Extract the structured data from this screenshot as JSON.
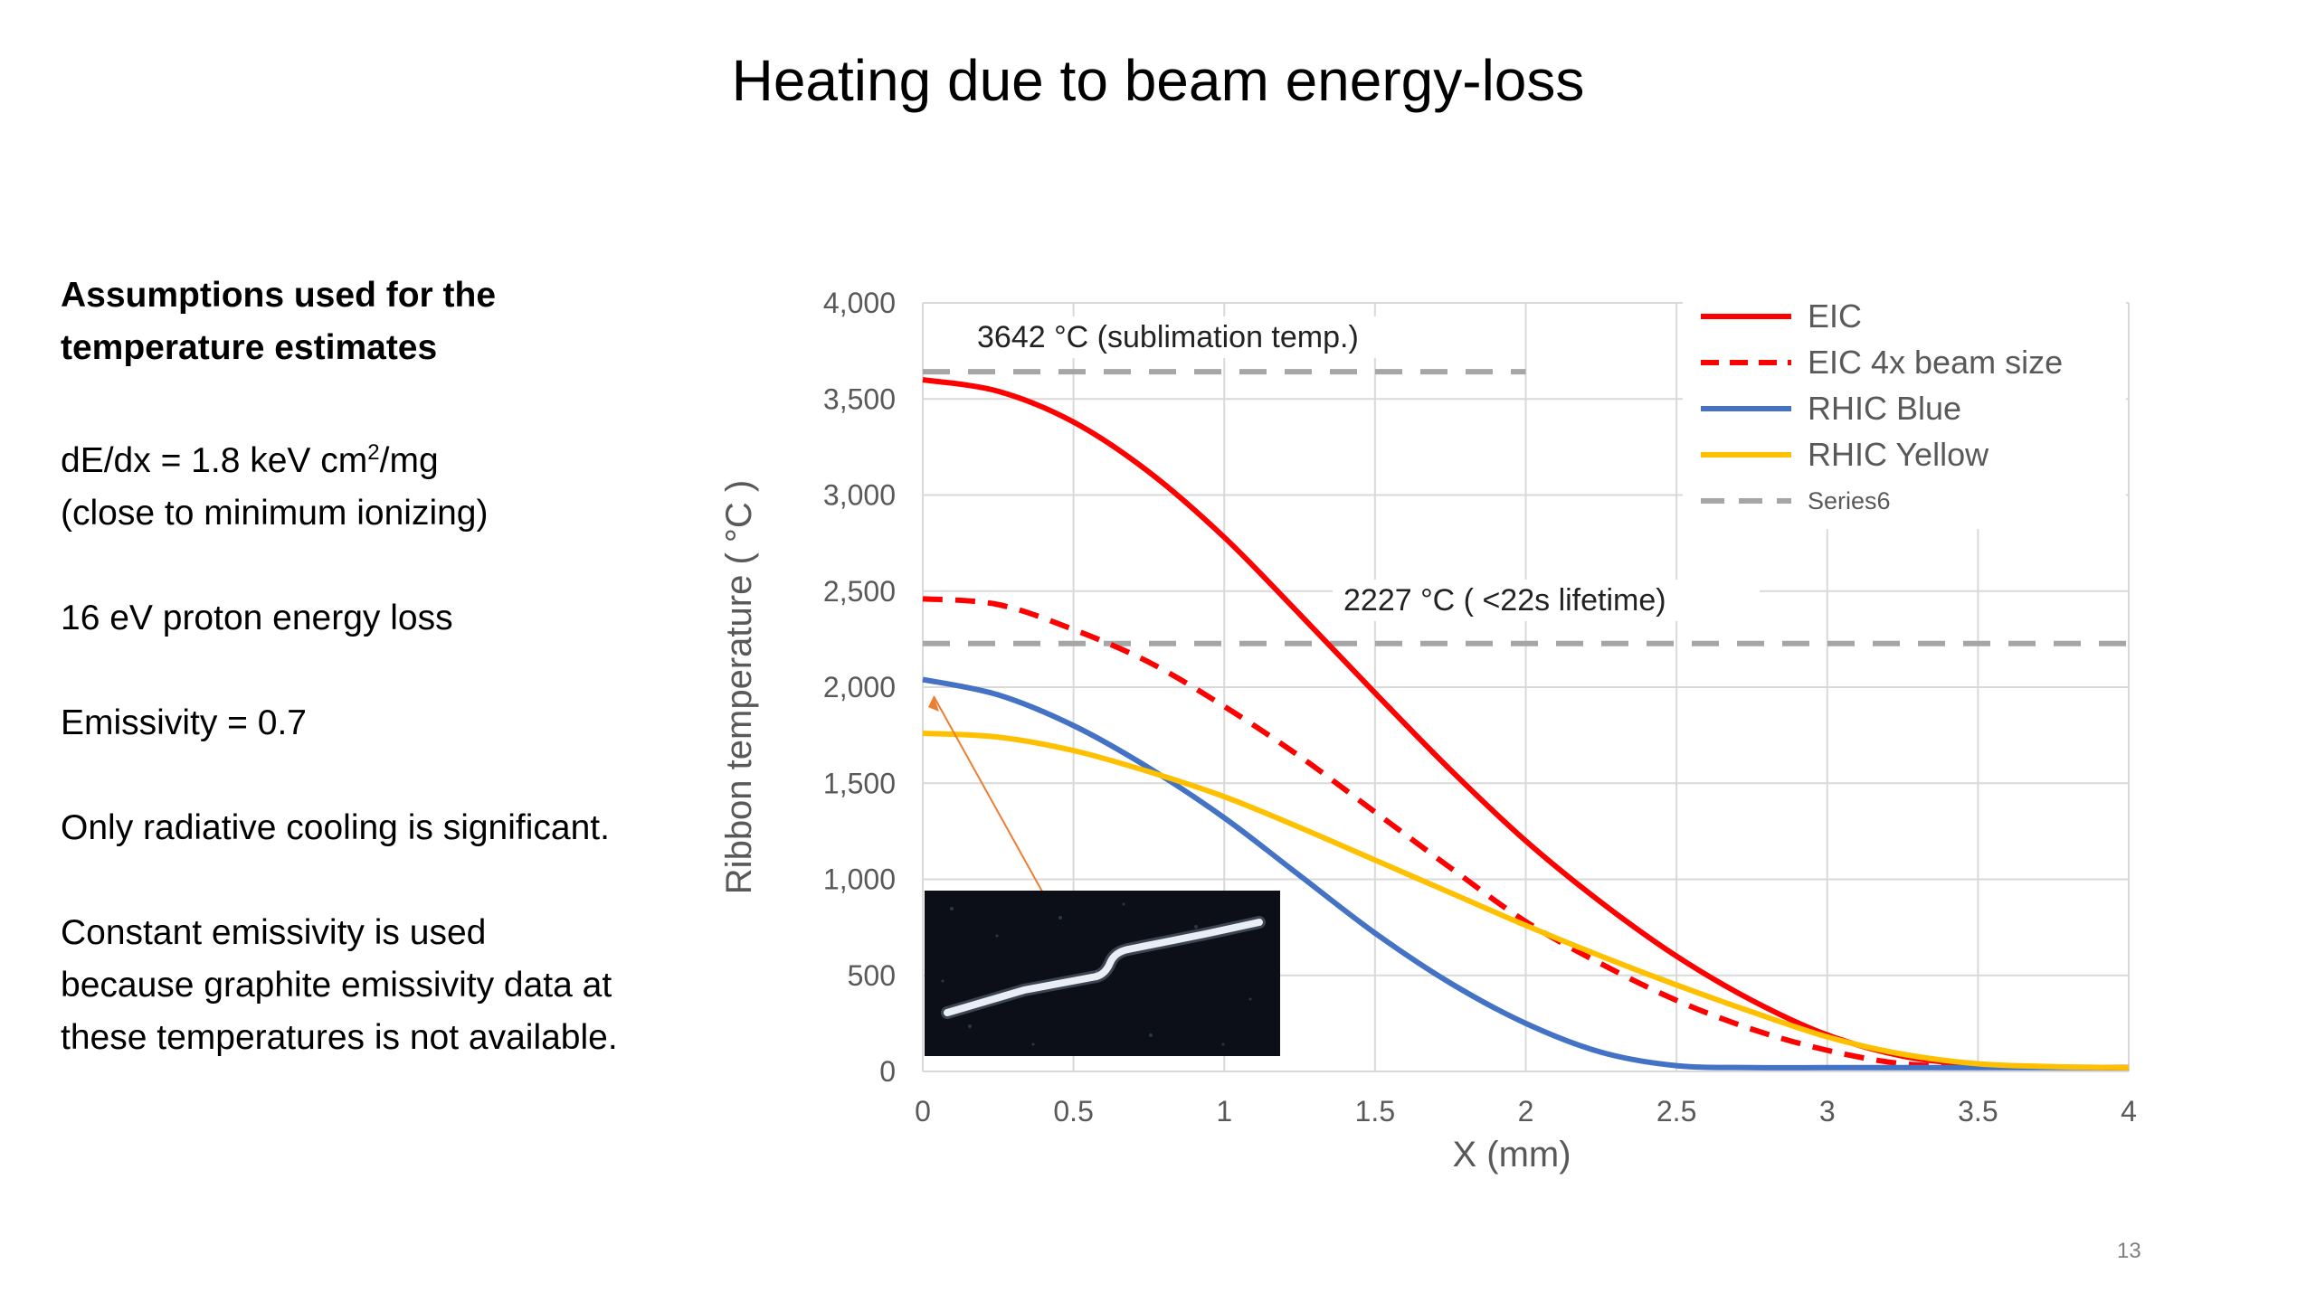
{
  "slide": {
    "title": "Heating due to beam energy-loss",
    "page_number": "13",
    "assumptions": {
      "heading": "Assumptions used for the temperature estimates",
      "dedx_prefix": "dE/dx = 1.8 keV cm",
      "dedx_sup": "2",
      "dedx_suffix": "/mg",
      "dedx_note": "(close to minimum ionizing)",
      "proton_loss": "16 eV proton energy loss",
      "emissivity": "Emissivity = 0.7",
      "cooling": "Only radiative cooling is significant.",
      "constant_emissivity": "Constant emissivity is used because graphite emissivity data at these temperatures is not available."
    }
  },
  "chart_data": {
    "type": "line",
    "xlabel": "X (mm)",
    "ylabel": "Ribbon temperature ( °C )",
    "xlim": [
      0,
      4
    ],
    "ylim": [
      0,
      4000
    ],
    "x_ticks": [
      "0",
      "0.5",
      "1",
      "1.5",
      "2",
      "2.5",
      "3",
      "3.5",
      "4"
    ],
    "y_ticks": [
      "0",
      "500",
      "1,000",
      "1,500",
      "2,000",
      "2,500",
      "3,000",
      "3,500",
      "4,000"
    ],
    "grid": true,
    "legend_position": "top-right",
    "series": [
      {
        "name": "EIC",
        "color": "#ff0000",
        "dash": "solid",
        "x": [
          0,
          0.25,
          0.5,
          0.75,
          1,
          1.25,
          1.5,
          1.75,
          2,
          2.25,
          2.5,
          2.75,
          3,
          3.25,
          3.5,
          3.75,
          4
        ],
        "y": [
          3600,
          3540,
          3380,
          3120,
          2780,
          2380,
          1970,
          1570,
          1200,
          880,
          600,
          370,
          190,
          80,
          35,
          22,
          20
        ]
      },
      {
        "name": "EIC 4x beam size",
        "color": "#ff0000",
        "dash": "dashed",
        "x": [
          0,
          0.25,
          0.5,
          0.75,
          1,
          1.25,
          1.5,
          1.75,
          2,
          2.25,
          2.5,
          2.75,
          3,
          3.25,
          3.5,
          3.75,
          4
        ],
        "y": [
          2460,
          2430,
          2300,
          2130,
          1900,
          1640,
          1350,
          1060,
          780,
          560,
          370,
          220,
          110,
          40,
          25,
          22,
          20
        ]
      },
      {
        "name": "RHIC Blue",
        "color": "#4472c4",
        "dash": "solid",
        "x": [
          0,
          0.25,
          0.5,
          0.75,
          1,
          1.25,
          1.5,
          1.75,
          2,
          2.25,
          2.5,
          2.75,
          3,
          3.25,
          3.5,
          3.75,
          4
        ],
        "y": [
          2040,
          1960,
          1800,
          1580,
          1320,
          1020,
          720,
          460,
          250,
          100,
          30,
          20,
          20,
          20,
          20,
          20,
          20
        ]
      },
      {
        "name": "RHIC Yellow",
        "color": "#ffc000",
        "dash": "solid",
        "x": [
          0,
          0.25,
          0.5,
          0.75,
          1,
          1.25,
          1.5,
          1.75,
          2,
          2.25,
          2.5,
          2.75,
          3,
          3.25,
          3.5,
          3.75,
          4
        ],
        "y": [
          1760,
          1740,
          1670,
          1560,
          1430,
          1270,
          1100,
          930,
          760,
          600,
          450,
          310,
          180,
          90,
          40,
          25,
          20
        ]
      },
      {
        "name": "Series6",
        "color": "#a6a6a6",
        "dash": "dashed",
        "x": [
          0,
          2
        ],
        "y": [
          3642,
          3642
        ]
      },
      {
        "name": "",
        "color": "#a6a6a6",
        "dash": "dashed",
        "x": [
          0,
          4
        ],
        "y": [
          2227,
          2227
        ]
      }
    ],
    "annotations": [
      {
        "text": "3642 °C  (sublimation temp.)"
      },
      {
        "text": "2227 °C   ( <22s lifetime)"
      }
    ]
  }
}
